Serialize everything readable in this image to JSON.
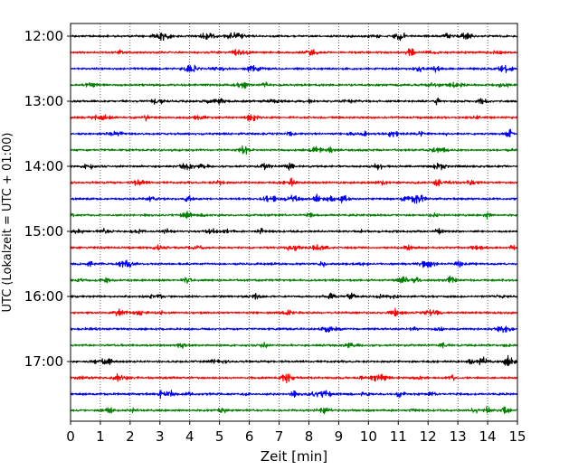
{
  "chart_data": {
    "type": "line",
    "title": "",
    "xlabel": "Zeit  [min]",
    "ylabel": "UTC (Lokalzeit = UTC + 01:00)",
    "xlim": [
      0,
      15
    ],
    "x_ticks": [
      0,
      1,
      2,
      3,
      4,
      5,
      6,
      7,
      8,
      9,
      10,
      11,
      12,
      13,
      14,
      15
    ],
    "y_tick_labels": [
      "12:00",
      "13:00",
      "14:00",
      "15:00",
      "16:00",
      "17:00"
    ],
    "trace_interval_min": 15,
    "first_trace": "12:00",
    "trace_count": 24,
    "trace_colors": [
      "#000000",
      "#ff0000",
      "#0000ff",
      "#008000"
    ],
    "grid": "vertical dotted lines at each minute",
    "legend": "none"
  }
}
